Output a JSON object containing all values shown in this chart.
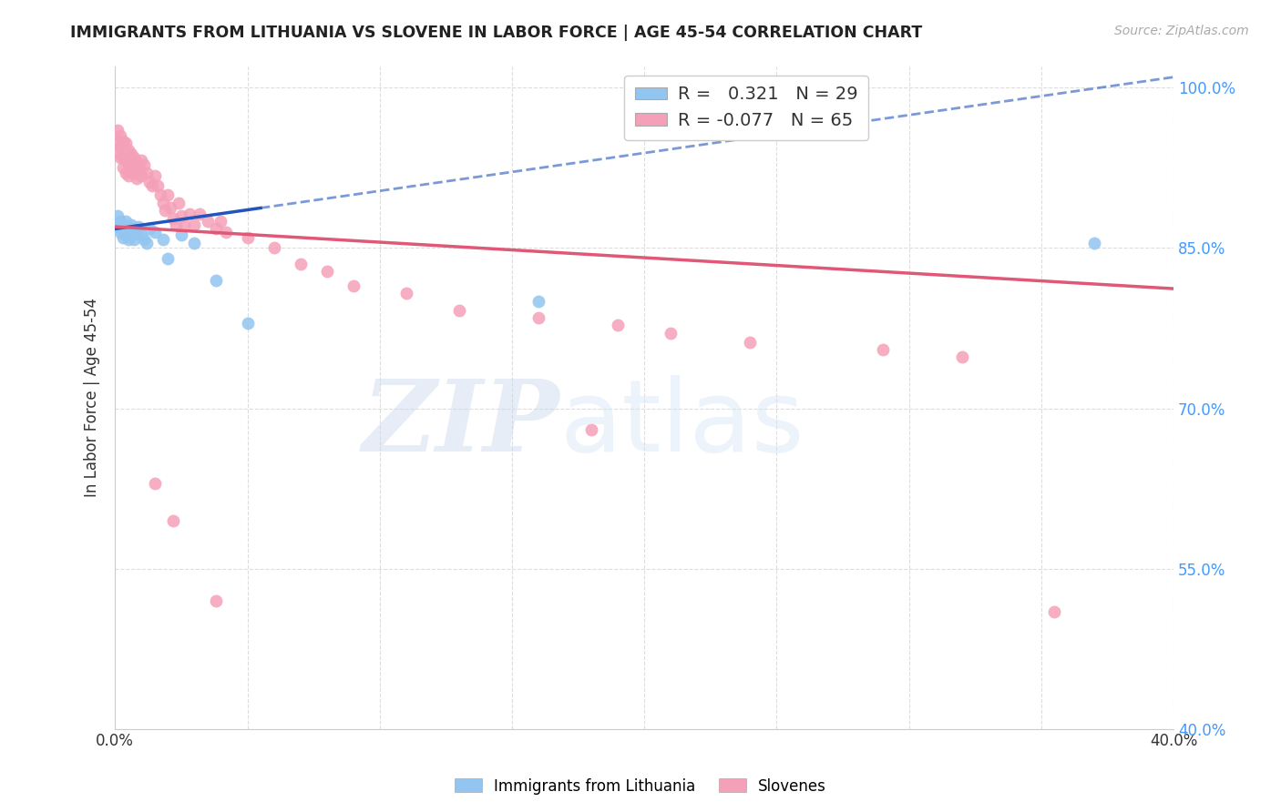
{
  "title": "IMMIGRANTS FROM LITHUANIA VS SLOVENE IN LABOR FORCE | AGE 45-54 CORRELATION CHART",
  "source": "Source: ZipAtlas.com",
  "ylabel": "In Labor Force | Age 45-54",
  "xlim": [
    0.0,
    0.4
  ],
  "ylim": [
    0.4,
    1.02
  ],
  "yticks": [
    0.4,
    0.55,
    0.7,
    0.85,
    1.0
  ],
  "ytick_labels": [
    "40.0%",
    "55.0%",
    "70.0%",
    "85.0%",
    "100.0%"
  ],
  "xticks": [
    0.0,
    0.05,
    0.1,
    0.15,
    0.2,
    0.25,
    0.3,
    0.35,
    0.4
  ],
  "xtick_labels": [
    "0.0%",
    "",
    "",
    "",
    "",
    "",
    "",
    "",
    "40.0%"
  ],
  "R_blue": 0.321,
  "N_blue": 29,
  "R_pink": -0.077,
  "N_pink": 65,
  "blue_scatter_x": [
    0.001,
    0.001,
    0.002,
    0.002,
    0.003,
    0.003,
    0.004,
    0.004,
    0.005,
    0.005,
    0.006,
    0.006,
    0.007,
    0.007,
    0.008,
    0.009,
    0.01,
    0.011,
    0.012,
    0.013,
    0.015,
    0.018,
    0.02,
    0.025,
    0.03,
    0.038,
    0.05,
    0.16,
    0.37
  ],
  "blue_scatter_y": [
    0.87,
    0.88,
    0.875,
    0.865,
    0.87,
    0.86,
    0.875,
    0.862,
    0.868,
    0.858,
    0.872,
    0.862,
    0.868,
    0.858,
    0.865,
    0.87,
    0.862,
    0.858,
    0.855,
    0.868,
    0.865,
    0.858,
    0.84,
    0.862,
    0.855,
    0.82,
    0.78,
    0.8,
    0.855
  ],
  "pink_scatter_x": [
    0.001,
    0.001,
    0.001,
    0.002,
    0.002,
    0.002,
    0.003,
    0.003,
    0.003,
    0.004,
    0.004,
    0.004,
    0.005,
    0.005,
    0.005,
    0.006,
    0.006,
    0.007,
    0.007,
    0.008,
    0.008,
    0.009,
    0.01,
    0.01,
    0.011,
    0.012,
    0.013,
    0.014,
    0.015,
    0.016,
    0.017,
    0.018,
    0.019,
    0.02,
    0.021,
    0.022,
    0.023,
    0.024,
    0.025,
    0.026,
    0.028,
    0.03,
    0.032,
    0.035,
    0.038,
    0.04,
    0.042,
    0.05,
    0.06,
    0.07,
    0.08,
    0.09,
    0.11,
    0.13,
    0.16,
    0.19,
    0.21,
    0.24,
    0.29,
    0.32,
    0.18,
    0.015,
    0.022,
    0.038,
    0.355
  ],
  "pink_scatter_y": [
    0.96,
    0.95,
    0.94,
    0.955,
    0.945,
    0.935,
    0.95,
    0.935,
    0.925,
    0.948,
    0.932,
    0.92,
    0.942,
    0.928,
    0.918,
    0.938,
    0.922,
    0.935,
    0.92,
    0.93,
    0.915,
    0.925,
    0.932,
    0.918,
    0.928,
    0.92,
    0.912,
    0.908,
    0.918,
    0.908,
    0.9,
    0.892,
    0.885,
    0.9,
    0.888,
    0.878,
    0.872,
    0.892,
    0.88,
    0.872,
    0.882,
    0.872,
    0.882,
    0.875,
    0.868,
    0.875,
    0.865,
    0.86,
    0.85,
    0.835,
    0.828,
    0.815,
    0.808,
    0.792,
    0.785,
    0.778,
    0.77,
    0.762,
    0.755,
    0.748,
    0.68,
    0.63,
    0.595,
    0.52,
    0.51
  ],
  "blue_color": "#92C5F0",
  "pink_color": "#F4A0B8",
  "blue_line_color": "#2255BB",
  "pink_line_color": "#E05878",
  "background_color": "#FFFFFF",
  "grid_color": "#DDDDDD",
  "blue_line_x_solid_end": 0.055,
  "blue_line_x_start": 0.001,
  "pink_line_x_start": 0.001,
  "pink_line_x_end": 0.4
}
